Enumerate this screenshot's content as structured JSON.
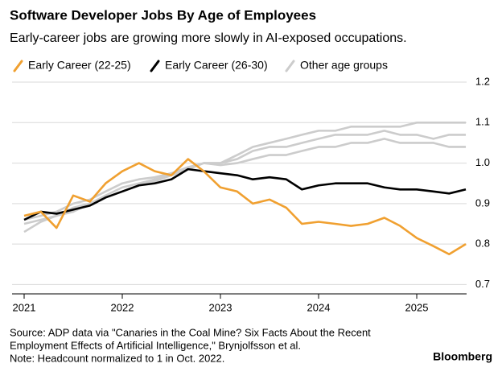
{
  "chart_data": {
    "type": "line",
    "title": "Software Developer Jobs By Age of Employees",
    "subtitle": "Early-career jobs are growing more slowly in AI-exposed occupations.",
    "x": [
      2021,
      2021.17,
      2021.33,
      2021.5,
      2021.67,
      2021.83,
      2022,
      2022.17,
      2022.33,
      2022.5,
      2022.67,
      2022.83,
      2023,
      2023.17,
      2023.33,
      2023.5,
      2023.67,
      2023.83,
      2024,
      2024.17,
      2024.33,
      2024.5,
      2024.67,
      2024.83,
      2025,
      2025.17,
      2025.33,
      2025.5
    ],
    "xlim": [
      2020.877,
      2025.508
    ],
    "xticks": [
      2021,
      2022,
      2023,
      2024,
      2025
    ],
    "ylim": [
      0.677,
      1.21
    ],
    "yticks": [
      1.2,
      1.1,
      {
        "value": 1,
        "label": "1.0"
      },
      0.9,
      0.8,
      0.7
    ],
    "grid": true,
    "series": [
      {
        "name": "Early Career (22-25)",
        "color": "#f0a030",
        "values": [
          0.87,
          0.88,
          0.84,
          0.92,
          0.905,
          0.95,
          0.98,
          1.0,
          0.98,
          0.97,
          1.01,
          0.98,
          0.94,
          0.93,
          0.9,
          0.91,
          0.89,
          0.85,
          0.855,
          0.85,
          0.845,
          0.85,
          0.865,
          0.845,
          0.815,
          0.795,
          0.775,
          0.8
        ]
      },
      {
        "name": "Early Career (26-30)",
        "color": "#000000",
        "values": [
          0.86,
          0.88,
          0.875,
          0.885,
          0.895,
          0.915,
          0.93,
          0.945,
          0.95,
          0.96,
          0.985,
          0.98,
          0.975,
          0.97,
          0.96,
          0.965,
          0.96,
          0.935,
          0.945,
          0.95,
          0.95,
          0.95,
          0.94,
          0.935,
          0.935,
          0.93,
          0.925,
          0.935
        ]
      },
      {
        "name": "Other age groups",
        "color": "#cccccc",
        "values": [
          [
            0.83,
            0.855,
            0.87,
            0.89,
            0.9,
            0.92,
            0.94,
            0.95,
            0.96,
            0.97,
            0.985,
            1.0,
            1.0,
            1.02,
            1.04,
            1.05,
            1.06,
            1.07,
            1.08,
            1.08,
            1.09,
            1.09,
            1.09,
            1.09,
            1.1,
            1.1,
            1.1,
            1.1
          ],
          [
            0.86,
            0.87,
            0.88,
            0.9,
            0.91,
            0.93,
            0.95,
            0.96,
            0.965,
            0.975,
            0.99,
            1.0,
            1.0,
            1.01,
            1.03,
            1.04,
            1.04,
            1.05,
            1.06,
            1.07,
            1.07,
            1.07,
            1.08,
            1.07,
            1.07,
            1.06,
            1.07,
            1.07
          ],
          [
            0.85,
            0.86,
            0.87,
            0.88,
            0.9,
            0.915,
            0.93,
            0.945,
            0.955,
            0.97,
            0.985,
            1.0,
            0.995,
            1.0,
            1.01,
            1.02,
            1.02,
            1.03,
            1.04,
            1.04,
            1.05,
            1.05,
            1.06,
            1.05,
            1.05,
            1.05,
            1.04,
            1.04
          ]
        ]
      }
    ],
    "source": [
      "Source: ADP data via \"Canaries in the Coal Mine? Six Facts About the Recent",
      "Employment Effects of Artificial Intelligence,\" Brynjolfsson et al."
    ],
    "note": "Note: Headcount normalized to 1 in Oct. 2022.",
    "credit": "Bloomberg"
  }
}
